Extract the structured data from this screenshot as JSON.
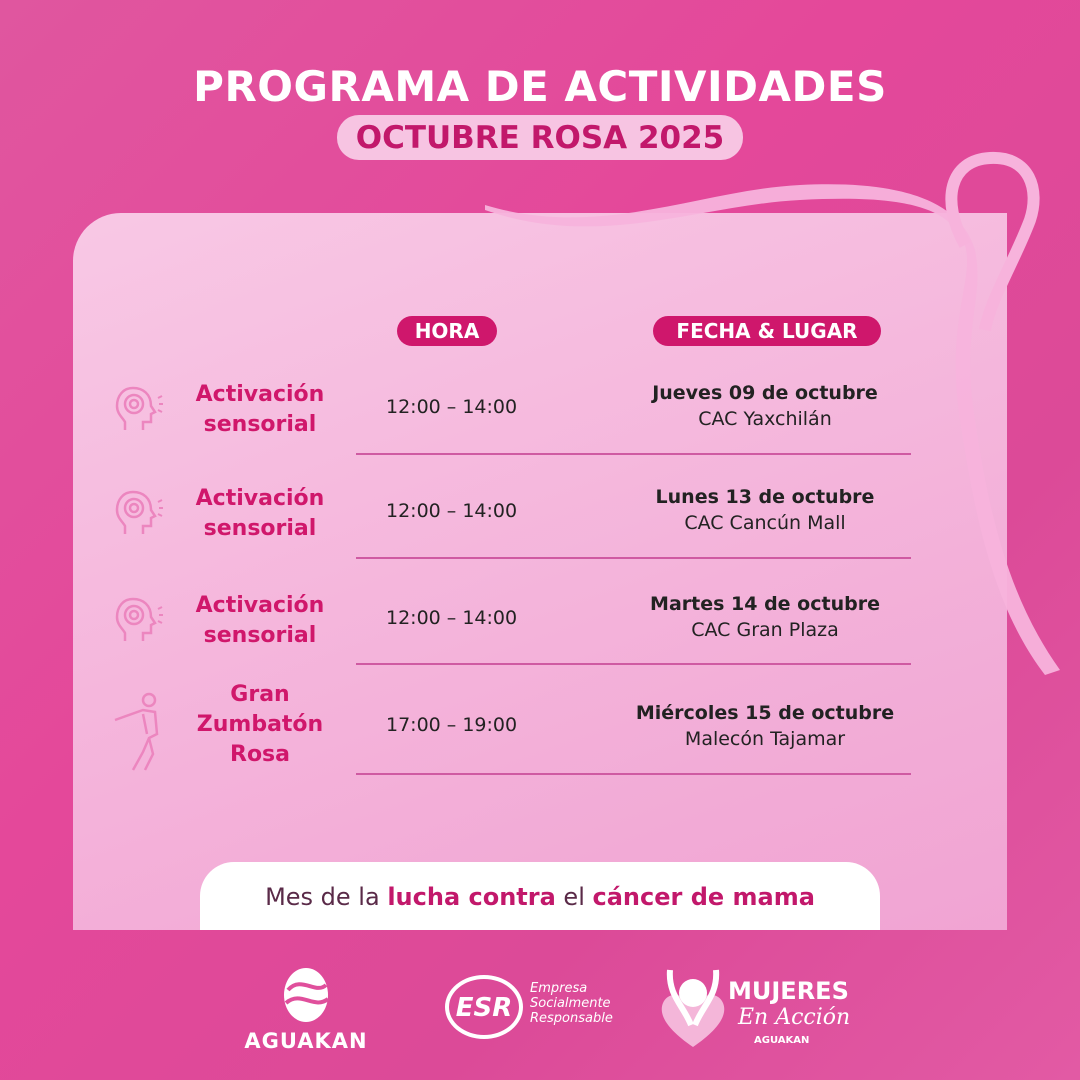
{
  "header": {
    "title": "PROGRAMA DE ACTIVIDADES",
    "subtitle": "OCTUBRE ROSA 2025"
  },
  "table": {
    "col_hora": "HORA",
    "col_fecha": "FECHA & LUGAR",
    "rows": [
      {
        "icon": "head-sensory-icon",
        "name_1": "Activación",
        "name_2": "sensorial",
        "name_3": "",
        "time": "12:00 – 14:00",
        "date": "Jueves 09 de octubre",
        "place": "CAC Yaxchilán"
      },
      {
        "icon": "head-sensory-icon",
        "name_1": "Activación",
        "name_2": "sensorial",
        "name_3": "",
        "time": "12:00 – 14:00",
        "date": "Lunes 13 de octubre",
        "place": "CAC Cancún Mall"
      },
      {
        "icon": "head-sensory-icon",
        "name_1": "Activación",
        "name_2": "sensorial",
        "name_3": "",
        "time": "12:00 – 14:00",
        "date": "Martes 14 de octubre",
        "place": "CAC Gran Plaza"
      },
      {
        "icon": "dancer-icon",
        "name_1": "Gran",
        "name_2": "Zumbatón",
        "name_3": "Rosa",
        "time": "17:00 – 19:00",
        "date": "Miércoles 15 de octubre",
        "place": "Malecón Tajamar"
      }
    ]
  },
  "banner": {
    "p1": "Mes de la ",
    "b1": "lucha contra",
    "p2": " el ",
    "b2": "cáncer de mama"
  },
  "logos": {
    "aguakan": "AGUAKAN",
    "esr": "ESR",
    "esr_text_1": "Empresa",
    "esr_text_2": "Socialmente",
    "esr_text_3": "Responsable",
    "mujeres": "MUJERES",
    "en_accion": "En Acción",
    "mujeres_sub": "AGUAKAN"
  },
  "colors": {
    "background": "#e04f9c",
    "accent": "#cf176c",
    "pill_light": "#f7c4e2",
    "ribbon": "#f7b3dc"
  }
}
